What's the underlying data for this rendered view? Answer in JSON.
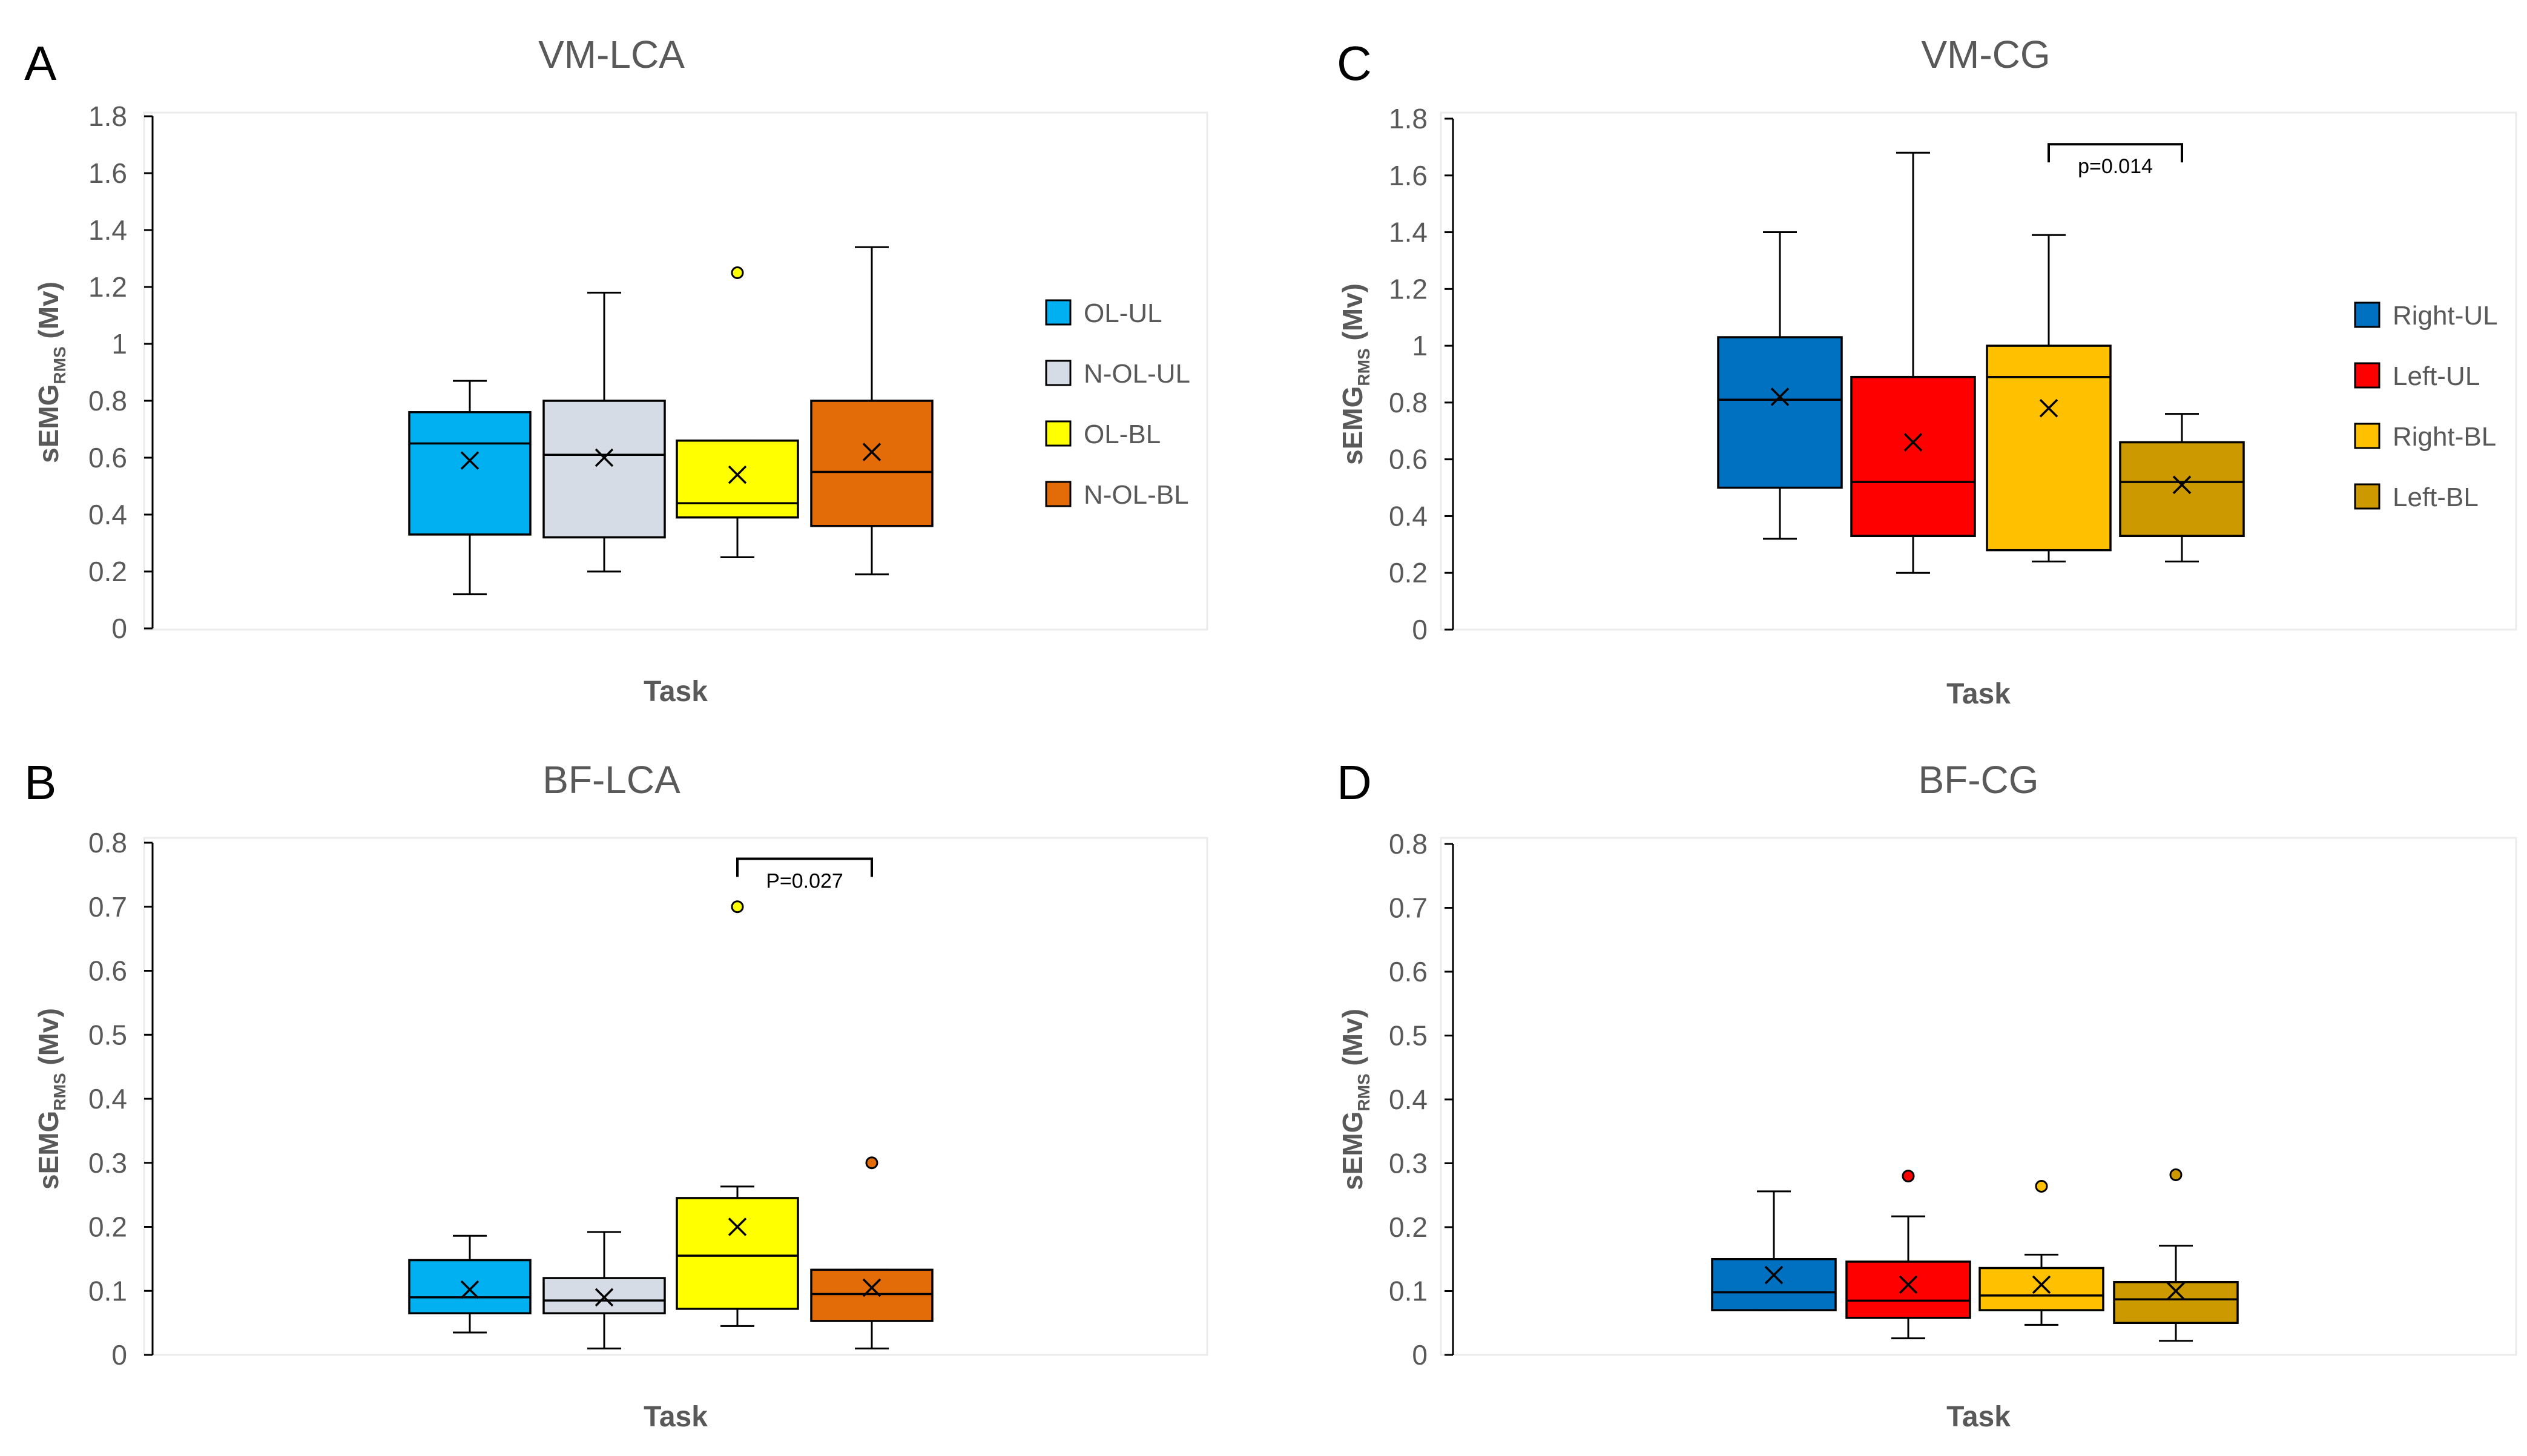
{
  "figure": {
    "panels": [
      "A",
      "B",
      "C",
      "D"
    ]
  },
  "colors": {
    "OL-UL": "#00B0F0",
    "N-OL-UL": "#D6DCE5",
    "OL-BL": "#FFFF00",
    "N-OL-BL": "#E36C09",
    "Right-UL": "#0070C0",
    "Left-UL": "#FF0000",
    "Right-BL": "#FFC000",
    "Left-BL": "#CC9900"
  },
  "chart_data": [
    {
      "panel": "A",
      "type": "box",
      "title": "VM-LCA",
      "xlabel": "Task",
      "ylabel": "sEMG",
      "ylabel_sub": "RMS",
      "ylabel_unit": " (Mv)",
      "ylim": [
        0,
        1.8
      ],
      "yticks": [
        "0",
        "0.2",
        "0.4",
        "0.6",
        "0.8",
        "1",
        "1.2",
        "1.4",
        "1.6",
        "1.8"
      ],
      "legend": [
        "OL-UL",
        "N-OL-UL",
        "OL-BL",
        "N-OL-BL"
      ],
      "series": [
        {
          "name": "OL-UL",
          "min": 0.12,
          "q1": 0.33,
          "median": 0.65,
          "q3": 0.76,
          "max": 0.87,
          "mean": 0.59,
          "outliers": []
        },
        {
          "name": "N-OL-UL",
          "min": 0.2,
          "q1": 0.32,
          "median": 0.61,
          "q3": 0.8,
          "max": 1.18,
          "mean": 0.6,
          "outliers": []
        },
        {
          "name": "OL-BL",
          "min": 0.25,
          "q1": 0.39,
          "median": 0.44,
          "q3": 0.66,
          "max": 0.66,
          "mean": 0.54,
          "outliers": [
            1.25
          ]
        },
        {
          "name": "N-OL-BL",
          "min": 0.19,
          "q1": 0.36,
          "median": 0.55,
          "q3": 0.8,
          "max": 1.34,
          "mean": 0.62,
          "outliers": []
        }
      ],
      "annotation": null
    },
    {
      "panel": "B",
      "type": "box",
      "title": "BF-LCA",
      "xlabel": "Task",
      "ylabel": "sEMG",
      "ylabel_sub": "RMS",
      "ylabel_unit": " (Mv)",
      "ylim": [
        0,
        0.8
      ],
      "yticks": [
        "0",
        "0.1",
        "0.2",
        "0.3",
        "0.4",
        "0.5",
        "0.6",
        "0.7",
        "0.8"
      ],
      "legend": [],
      "series": [
        {
          "name": "OL-UL",
          "min": 0.035,
          "q1": 0.065,
          "median": 0.09,
          "q3": 0.148,
          "max": 0.186,
          "mean": 0.102,
          "outliers": []
        },
        {
          "name": "N-OL-UL",
          "min": 0.01,
          "q1": 0.065,
          "median": 0.085,
          "q3": 0.12,
          "max": 0.192,
          "mean": 0.09,
          "outliers": []
        },
        {
          "name": "OL-BL",
          "min": 0.045,
          "q1": 0.072,
          "median": 0.155,
          "q3": 0.245,
          "max": 0.263,
          "mean": 0.2,
          "outliers": [
            0.7
          ]
        },
        {
          "name": "N-OL-BL",
          "min": 0.01,
          "q1": 0.053,
          "median": 0.095,
          "q3": 0.133,
          "max": 0.133,
          "mean": 0.105,
          "outliers": [
            0.3
          ]
        }
      ],
      "annotation": {
        "text": "P=0.027",
        "from": 3,
        "to": 4,
        "y": 0.775
      }
    },
    {
      "panel": "C",
      "type": "box",
      "title": "VM-CG",
      "xlabel": "Task",
      "ylabel": "sEMG",
      "ylabel_sub": "RMS",
      "ylabel_unit": " (Mv)",
      "ylim": [
        0,
        1.8
      ],
      "yticks": [
        "0",
        "0.2",
        "0.4",
        "0.6",
        "0.8",
        "1",
        "1.2",
        "1.4",
        "1.6",
        "1.8"
      ],
      "legend": [
        "Right-UL",
        "Left-UL",
        "Right-BL",
        "Left-BL"
      ],
      "series": [
        {
          "name": "Right-UL",
          "min": 0.32,
          "q1": 0.5,
          "median": 0.81,
          "q3": 1.03,
          "max": 1.4,
          "mean": 0.82,
          "outliers": []
        },
        {
          "name": "Left-UL",
          "min": 0.2,
          "q1": 0.33,
          "median": 0.52,
          "q3": 0.89,
          "max": 1.68,
          "mean": 0.66,
          "outliers": []
        },
        {
          "name": "Right-BL",
          "min": 0.24,
          "q1": 0.28,
          "median": 0.89,
          "q3": 1.0,
          "max": 1.39,
          "mean": 0.78,
          "outliers": []
        },
        {
          "name": "Left-BL",
          "min": 0.24,
          "q1": 0.33,
          "median": 0.52,
          "q3": 0.66,
          "max": 0.76,
          "mean": 0.51,
          "outliers": []
        }
      ],
      "annotation": {
        "text": "p=0.014",
        "from": 3,
        "to": 4,
        "y": 1.71
      }
    },
    {
      "panel": "D",
      "type": "box",
      "title": "BF-CG",
      "xlabel": "Task",
      "ylabel": "sEMG",
      "ylabel_sub": "RMS",
      "ylabel_unit": " (Mv)",
      "ylim": [
        0,
        0.8
      ],
      "yticks": [
        "0",
        "0.1",
        "0.2",
        "0.3",
        "0.4",
        "0.5",
        "0.6",
        "0.7",
        "0.8"
      ],
      "legend": [],
      "series": [
        {
          "name": "Right-UL",
          "min": 0.07,
          "q1": 0.07,
          "median": 0.098,
          "q3": 0.15,
          "max": 0.256,
          "mean": 0.125,
          "outliers": []
        },
        {
          "name": "Left-UL",
          "min": 0.026,
          "q1": 0.058,
          "median": 0.085,
          "q3": 0.146,
          "max": 0.217,
          "mean": 0.11,
          "outliers": [
            0.28
          ]
        },
        {
          "name": "Right-BL",
          "min": 0.047,
          "q1": 0.07,
          "median": 0.093,
          "q3": 0.136,
          "max": 0.157,
          "mean": 0.11,
          "outliers": [
            0.264
          ]
        },
        {
          "name": "Left-BL",
          "min": 0.022,
          "q1": 0.05,
          "median": 0.087,
          "q3": 0.114,
          "max": 0.171,
          "mean": 0.1,
          "outliers": [
            0.282
          ]
        }
      ],
      "annotation": null
    }
  ]
}
